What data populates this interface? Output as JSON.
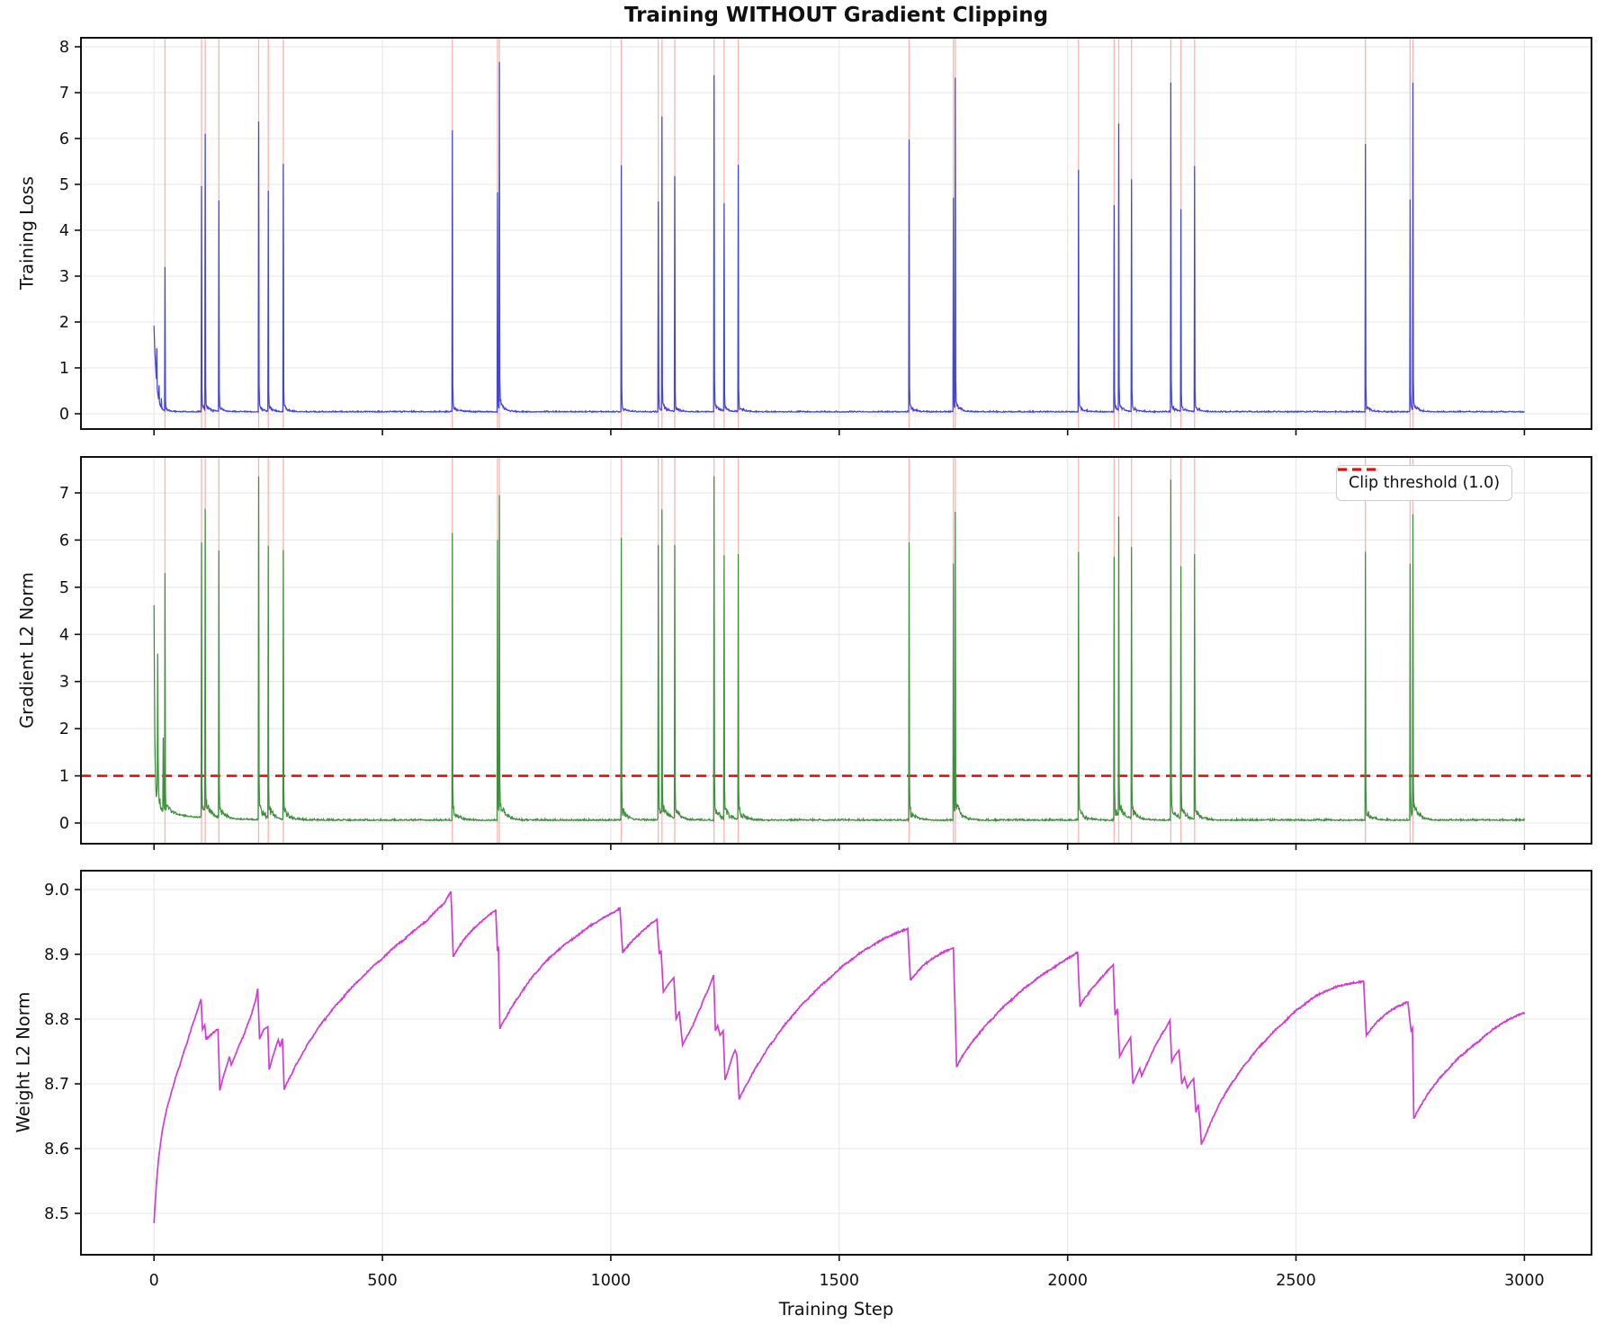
{
  "chart_data": {
    "type": "line",
    "title": "Training WITHOUT Gradient Clipping",
    "xlabel": "Training Step",
    "x_ticks": [
      0,
      500,
      1000,
      1500,
      2000,
      2500,
      3000
    ],
    "x_lim": [
      -160,
      3147
    ],
    "grid": true,
    "colors": {
      "loss_line": "#4444d6",
      "grad_line": "#3f8f3f",
      "weight_line": "#cf3ccf",
      "event_line": "#f4a9a4",
      "threshold_line": "#dd1111",
      "gridline": "#e7e7e7",
      "spine": "#111111"
    },
    "panels": [
      {
        "ylabel": "Training Loss",
        "series_name": "training loss",
        "y_ticks": [
          0,
          1,
          2,
          3,
          4,
          5,
          6,
          7,
          8
        ],
        "y_lim": [
          -0.33,
          8.2
        ]
      },
      {
        "ylabel": "Gradient L2 Norm",
        "series_name": "gradient L2 norm",
        "y_ticks": [
          0,
          1,
          2,
          3,
          4,
          5,
          6,
          7
        ],
        "y_lim": [
          -0.44,
          7.76
        ],
        "threshold": {
          "value": 1.0,
          "legend_label": "Clip threshold (1.0)"
        }
      },
      {
        "ylabel": "Weight L2 Norm",
        "series_name": "weight L2 norm",
        "y_ticks": [
          8.5,
          8.6,
          8.7,
          8.8,
          8.9,
          9.0
        ],
        "y_tick_labels": [
          "8.5",
          "8.6",
          "8.7",
          "8.8",
          "8.9",
          "9.0"
        ],
        "y_lim": [
          8.436,
          9.029
        ]
      }
    ],
    "loss_initial": {
      "start": 1.92,
      "tau": 5.2,
      "bumps": [
        [
          6,
          1.43
        ],
        [
          11,
          0.62
        ],
        [
          16,
          0.34
        ]
      ]
    },
    "grad_initial": [
      4.62,
      2.9,
      1.7,
      1.05,
      0.72,
      0.55,
      0.62,
      0.85,
      3.59,
      1.35,
      0.72,
      0.48,
      0.4,
      0.52,
      0.35,
      0.3,
      0.28,
      0.33,
      0.26,
      0.24,
      1.81,
      0.6,
      0.35,
      0.28
    ],
    "instability_events": [
      {
        "step": 24,
        "loss": 3.2,
        "grad": 5.3
      },
      {
        "step": 104,
        "loss": 4.96,
        "grad": 5.95
      },
      {
        "step": 112,
        "loss": 6.1,
        "grad": 6.66
      },
      {
        "step": 142,
        "loss": 4.65,
        "grad": 5.78
      },
      {
        "step": 229,
        "loss": 6.37,
        "grad": 7.35
      },
      {
        "step": 250,
        "loss": 4.86,
        "grad": 5.88
      },
      {
        "step": 283,
        "loss": 5.45,
        "grad": 5.79
      },
      {
        "step": 653,
        "loss": 6.18,
        "grad": 6.15
      },
      {
        "step": 752,
        "loss": 4.83,
        "grad": 6.0
      },
      {
        "step": 756,
        "loss": 7.67,
        "grad": 6.95
      },
      {
        "step": 1023,
        "loss": 5.42,
        "grad": 6.05
      },
      {
        "step": 1104,
        "loss": 4.63,
        "grad": 5.9
      },
      {
        "step": 1112,
        "loss": 6.48,
        "grad": 6.65
      },
      {
        "step": 1140,
        "loss": 5.18,
        "grad": 5.9
      },
      {
        "step": 1226,
        "loss": 7.38,
        "grad": 7.35
      },
      {
        "step": 1248,
        "loss": 4.59,
        "grad": 5.68
      },
      {
        "step": 1279,
        "loss": 5.43,
        "grad": 5.7
      },
      {
        "step": 1653,
        "loss": 5.98,
        "grad": 5.95
      },
      {
        "step": 1750,
        "loss": 4.71,
        "grad": 5.5
      },
      {
        "step": 1754,
        "loss": 7.33,
        "grad": 6.6
      },
      {
        "step": 2024,
        "loss": 5.32,
        "grad": 5.75
      },
      {
        "step": 2102,
        "loss": 4.55,
        "grad": 5.65
      },
      {
        "step": 2112,
        "loss": 6.33,
        "grad": 6.5
      },
      {
        "step": 2140,
        "loss": 5.11,
        "grad": 5.85
      },
      {
        "step": 2226,
        "loss": 7.22,
        "grad": 7.28
      },
      {
        "step": 2248,
        "loss": 4.46,
        "grad": 5.45
      },
      {
        "step": 2278,
        "loss": 5.4,
        "grad": 5.7
      },
      {
        "step": 2652,
        "loss": 5.88,
        "grad": 5.75
      },
      {
        "step": 2750,
        "loss": 4.67,
        "grad": 5.5
      },
      {
        "step": 2756,
        "loss": 7.22,
        "grad": 6.55
      }
    ],
    "weight_anchors": [
      [
        0,
        8.485
      ],
      [
        5,
        8.545
      ],
      [
        10,
        8.585
      ],
      [
        18,
        8.628
      ],
      [
        28,
        8.662
      ],
      [
        40,
        8.692
      ],
      [
        55,
        8.725
      ],
      [
        72,
        8.762
      ],
      [
        88,
        8.798
      ],
      [
        100,
        8.825
      ],
      [
        103,
        8.831
      ],
      [
        106,
        8.784
      ],
      [
        111,
        8.791
      ],
      [
        114,
        8.769
      ],
      [
        128,
        8.778
      ],
      [
        140,
        8.785
      ],
      [
        144,
        8.69
      ],
      [
        152,
        8.712
      ],
      [
        160,
        8.73
      ],
      [
        165,
        8.742
      ],
      [
        169,
        8.729
      ],
      [
        180,
        8.748
      ],
      [
        195,
        8.772
      ],
      [
        210,
        8.8
      ],
      [
        222,
        8.828
      ],
      [
        227,
        8.847
      ],
      [
        231,
        8.769
      ],
      [
        240,
        8.784
      ],
      [
        249,
        8.788
      ],
      [
        252,
        8.722
      ],
      [
        260,
        8.742
      ],
      [
        268,
        8.76
      ],
      [
        272,
        8.768
      ],
      [
        276,
        8.757
      ],
      [
        281,
        8.77
      ],
      [
        285,
        8.691
      ],
      [
        300,
        8.713
      ],
      [
        320,
        8.74
      ],
      [
        345,
        8.77
      ],
      [
        375,
        8.8
      ],
      [
        410,
        8.83
      ],
      [
        450,
        8.86
      ],
      [
        495,
        8.89
      ],
      [
        545,
        8.921
      ],
      [
        595,
        8.95
      ],
      [
        635,
        8.978
      ],
      [
        650,
        8.996
      ],
      [
        655,
        8.896
      ],
      [
        668,
        8.912
      ],
      [
        685,
        8.928
      ],
      [
        705,
        8.943
      ],
      [
        728,
        8.957
      ],
      [
        748,
        8.968
      ],
      [
        752,
        8.905
      ],
      [
        754,
        8.912
      ],
      [
        757,
        8.786
      ],
      [
        770,
        8.802
      ],
      [
        800,
        8.836
      ],
      [
        835,
        8.87
      ],
      [
        875,
        8.9
      ],
      [
        920,
        8.925
      ],
      [
        965,
        8.948
      ],
      [
        1005,
        8.964
      ],
      [
        1020,
        8.971
      ],
      [
        1026,
        8.903
      ],
      [
        1040,
        8.915
      ],
      [
        1058,
        8.928
      ],
      [
        1076,
        8.94
      ],
      [
        1092,
        8.949
      ],
      [
        1101,
        8.954
      ],
      [
        1106,
        8.9
      ],
      [
        1110,
        8.906
      ],
      [
        1115,
        8.842
      ],
      [
        1124,
        8.852
      ],
      [
        1133,
        8.86
      ],
      [
        1138,
        8.864
      ],
      [
        1143,
        8.8
      ],
      [
        1150,
        8.812
      ],
      [
        1157,
        8.76
      ],
      [
        1168,
        8.775
      ],
      [
        1180,
        8.79
      ],
      [
        1195,
        8.815
      ],
      [
        1210,
        8.84
      ],
      [
        1222,
        8.862
      ],
      [
        1225,
        8.868
      ],
      [
        1229,
        8.782
      ],
      [
        1234,
        8.79
      ],
      [
        1239,
        8.775
      ],
      [
        1246,
        8.782
      ],
      [
        1250,
        8.706
      ],
      [
        1256,
        8.718
      ],
      [
        1262,
        8.733
      ],
      [
        1267,
        8.744
      ],
      [
        1272,
        8.752
      ],
      [
        1276,
        8.744
      ],
      [
        1281,
        8.676
      ],
      [
        1300,
        8.702
      ],
      [
        1325,
        8.733
      ],
      [
        1355,
        8.765
      ],
      [
        1390,
        8.798
      ],
      [
        1430,
        8.83
      ],
      [
        1475,
        8.86
      ],
      [
        1520,
        8.888
      ],
      [
        1565,
        8.91
      ],
      [
        1610,
        8.928
      ],
      [
        1645,
        8.938
      ],
      [
        1650,
        8.94
      ],
      [
        1656,
        8.86
      ],
      [
        1670,
        8.872
      ],
      [
        1690,
        8.886
      ],
      [
        1715,
        8.898
      ],
      [
        1740,
        8.907
      ],
      [
        1750,
        8.91
      ],
      [
        1757,
        8.726
      ],
      [
        1775,
        8.748
      ],
      [
        1800,
        8.772
      ],
      [
        1835,
        8.8
      ],
      [
        1875,
        8.828
      ],
      [
        1920,
        8.855
      ],
      [
        1965,
        8.877
      ],
      [
        2010,
        8.897
      ],
      [
        2022,
        8.904
      ],
      [
        2027,
        8.82
      ],
      [
        2042,
        8.836
      ],
      [
        2060,
        8.852
      ],
      [
        2080,
        8.868
      ],
      [
        2095,
        8.88
      ],
      [
        2100,
        8.884
      ],
      [
        2104,
        8.806
      ],
      [
        2109,
        8.816
      ],
      [
        2114,
        8.742
      ],
      [
        2124,
        8.756
      ],
      [
        2133,
        8.766
      ],
      [
        2138,
        8.772
      ],
      [
        2143,
        8.7
      ],
      [
        2152,
        8.714
      ],
      [
        2158,
        8.724
      ],
      [
        2162,
        8.712
      ],
      [
        2172,
        8.728
      ],
      [
        2185,
        8.748
      ],
      [
        2200,
        8.768
      ],
      [
        2215,
        8.786
      ],
      [
        2224,
        8.798
      ],
      [
        2228,
        8.734
      ],
      [
        2235,
        8.744
      ],
      [
        2244,
        8.752
      ],
      [
        2250,
        8.7
      ],
      [
        2256,
        8.71
      ],
      [
        2262,
        8.694
      ],
      [
        2270,
        8.703
      ],
      [
        2276,
        8.708
      ],
      [
        2281,
        8.656
      ],
      [
        2286,
        8.668
      ],
      [
        2290,
        8.64
      ],
      [
        2293,
        8.606
      ],
      [
        2305,
        8.625
      ],
      [
        2320,
        8.65
      ],
      [
        2340,
        8.678
      ],
      [
        2365,
        8.706
      ],
      [
        2395,
        8.735
      ],
      [
        2430,
        8.764
      ],
      [
        2470,
        8.792
      ],
      [
        2510,
        8.818
      ],
      [
        2550,
        8.838
      ],
      [
        2590,
        8.85
      ],
      [
        2625,
        8.856
      ],
      [
        2648,
        8.858
      ],
      [
        2654,
        8.775
      ],
      [
        2668,
        8.788
      ],
      [
        2685,
        8.8
      ],
      [
        2705,
        8.812
      ],
      [
        2725,
        8.82
      ],
      [
        2745,
        8.826
      ],
      [
        2752,
        8.782
      ],
      [
        2755,
        8.786
      ],
      [
        2758,
        8.646
      ],
      [
        2775,
        8.668
      ],
      [
        2800,
        8.695
      ],
      [
        2830,
        8.72
      ],
      [
        2865,
        8.745
      ],
      [
        2900,
        8.765
      ],
      [
        2940,
        8.788
      ],
      [
        2975,
        8.802
      ],
      [
        3000,
        8.81
      ]
    ]
  }
}
